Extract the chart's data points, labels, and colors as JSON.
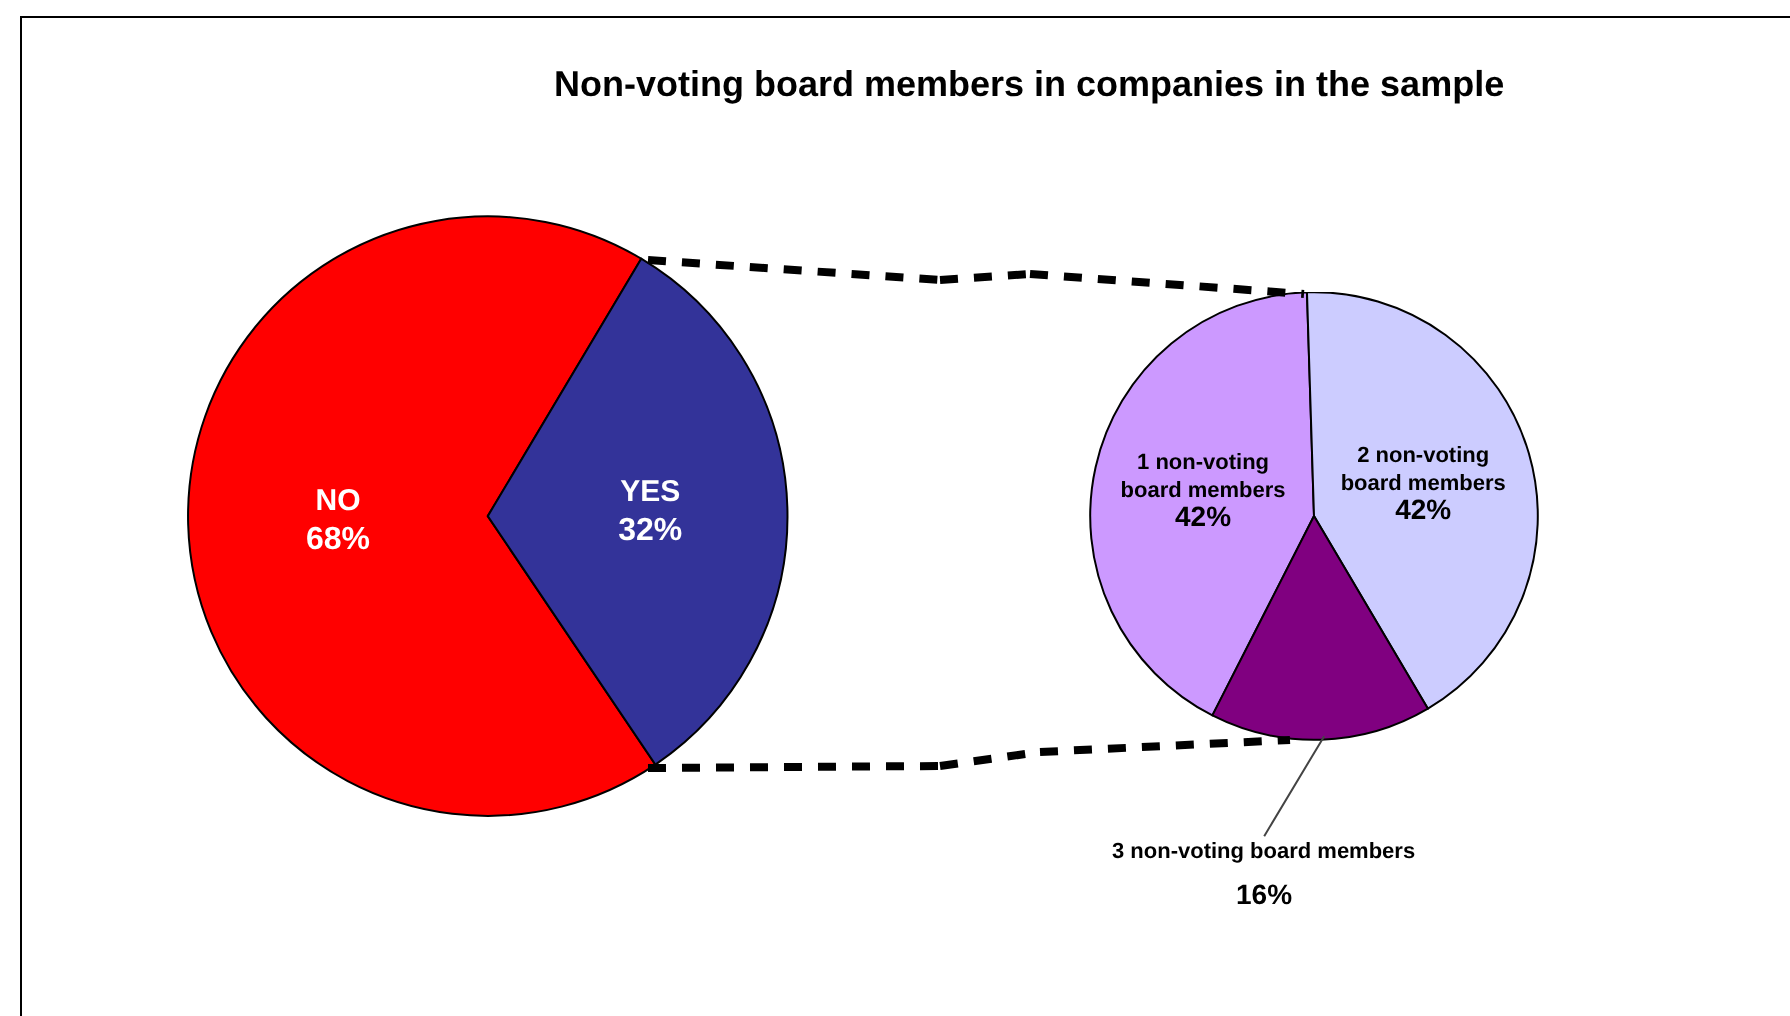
{
  "chart_data": [
    {
      "type": "pie",
      "title": "Non-voting board members in companies in the sample",
      "categories": [
        "NO",
        "YES"
      ],
      "values": [
        68,
        32
      ],
      "colors": [
        "#ff0000",
        "#333399"
      ],
      "value_labels": [
        "68%",
        "32%"
      ],
      "legend": false
    },
    {
      "type": "pie",
      "categories": [
        "1 non-voting board members",
        "2 non-voting board members",
        "3 non-voting board members"
      ],
      "values": [
        42,
        42,
        16
      ],
      "colors": [
        "#cc99ff",
        "#ccccff",
        "#800080"
      ],
      "value_labels": [
        "42%",
        "42%",
        "16%"
      ],
      "legend": false
    }
  ]
}
